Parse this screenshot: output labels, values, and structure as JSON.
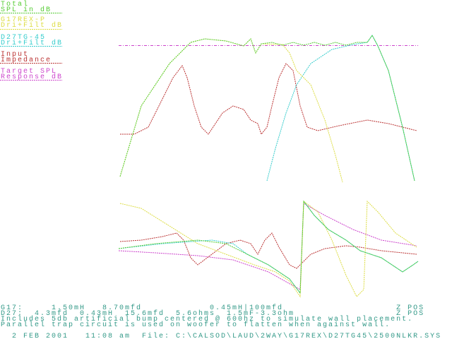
{
  "legend": [
    {
      "lines": [
        "Total",
        "SPL in dB"
      ]
    },
    {
      "lines": [
        "G17REX-P",
        "Dri+Filt dB"
      ]
    },
    {
      "lines": [
        "D27TG-45",
        "Dri+Filt dB"
      ]
    },
    {
      "lines": [
        "Input",
        "Impedance"
      ]
    },
    {
      "lines": [
        "Target SPL",
        "Response dB"
      ]
    }
  ],
  "footer": [
    "G17:     1.50mH   8.70mfd            0.45mH|100mfd                    Z POS",
    "D27:  4.3mfd  0.43mH  15.6mfd  5.6ohms  1.5mF-3.3ohm                  Z POS",
    "Includes 5db artificial bump centered @ 600hz to simulate wall placement.",
    "Parallel trap circuit is used on woofer to flatten when against wall.",
    "  2 FEB 2001   11:08 am  File: C:\\CALSOD\\LAUD\\2WAY\\G17REX\\D27TG45\\2500NLKR.SYS"
  ]
}
